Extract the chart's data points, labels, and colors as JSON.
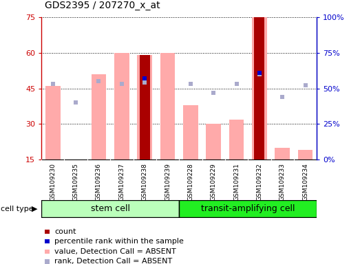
{
  "title": "GDS2395 / 207270_x_at",
  "samples": [
    "GSM109230",
    "GSM109235",
    "GSM109236",
    "GSM109237",
    "GSM109238",
    "GSM109239",
    "GSM109228",
    "GSM109229",
    "GSM109231",
    "GSM109232",
    "GSM109233",
    "GSM109234"
  ],
  "value_bars": [
    46,
    15,
    51,
    60,
    59,
    60,
    38,
    30,
    32,
    75,
    20,
    19
  ],
  "rank_dots": [
    53,
    40,
    55,
    53,
    54,
    null,
    53,
    47,
    53,
    60,
    44,
    52
  ],
  "count_bars": [
    null,
    null,
    null,
    null,
    59,
    null,
    null,
    null,
    null,
    75,
    null,
    null
  ],
  "percentile_dots": [
    null,
    null,
    null,
    null,
    57,
    null,
    null,
    null,
    null,
    61,
    null,
    null
  ],
  "ylim_left": [
    15,
    75
  ],
  "ylim_right": [
    0,
    100
  ],
  "yticks_left": [
    15,
    30,
    45,
    60,
    75
  ],
  "yticks_right": [
    0,
    25,
    50,
    75,
    100
  ],
  "ytick_labels_right": [
    "0%",
    "25%",
    "50%",
    "75%",
    "100%"
  ],
  "left_color": "#cc0000",
  "right_color": "#0000cc",
  "value_bar_color": "#ffaaaa",
  "rank_dot_color": "#aaaacc",
  "count_bar_color": "#aa0000",
  "percentile_dot_color": "#0000cc",
  "stem_cell_color": "#bbffbb",
  "transit_cell_color": "#22ee22",
  "stem_cell_label": "stem cell",
  "transit_label": "transit-amplifying cell",
  "gray_box_color": "#cccccc"
}
